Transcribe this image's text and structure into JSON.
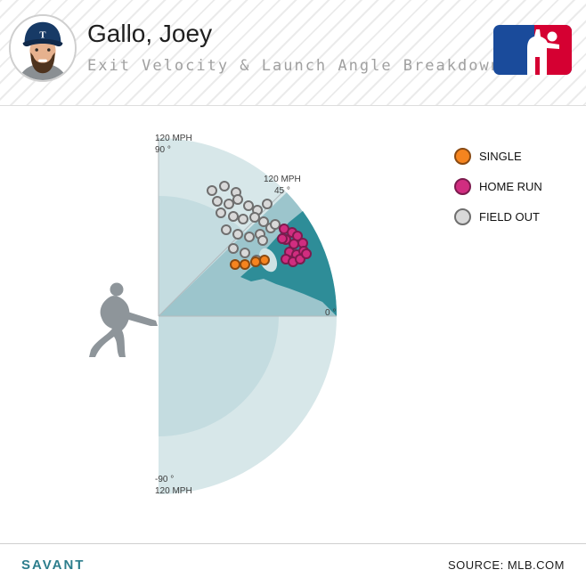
{
  "header": {
    "title": "Gallo, Joey",
    "subtitle": "Exit Velocity & Launch Angle Breakdown"
  },
  "legend": [
    {
      "label": "SINGLE",
      "color": "#f5841f",
      "stroke": "#8a4a12"
    },
    {
      "label": "HOME RUN",
      "color": "#d12d80",
      "stroke": "#7c1b4e"
    },
    {
      "label": "FIELD OUT",
      "color": "#d9d9d9",
      "stroke": "#6f6f6f"
    }
  ],
  "axis_labels": {
    "top": [
      "120 MPH",
      "90 °"
    ],
    "diag": [
      "120 MPH",
      "45 °"
    ],
    "right": "0 °",
    "bottom": [
      "-90 °",
      "120 MPH"
    ]
  },
  "footer": {
    "brand": "SAVANT",
    "source": "SOURCE: MLB.COM"
  },
  "colors": {
    "zone_outer": "#d7e7e9",
    "zone_inner": "#c4dce0",
    "zone_medium": "#9cc5cc",
    "zone_dark": "#2e8d98",
    "notch": "#cfe2e4",
    "axis_line": "#b3babd",
    "batter": "#8e959a",
    "mlb_blue": "#1a4b9b",
    "mlb_red": "#d50032"
  },
  "chart_data": {
    "type": "scatter",
    "coordinates": "polar",
    "title": "Exit Velocity & Launch Angle Breakdown",
    "angle_label": "launch angle (degrees)",
    "radius_label": "exit velocity (mph)",
    "angle_range": [
      -90,
      90
    ],
    "r_max": 120,
    "point_format": [
      "launch_angle_deg",
      "exit_velocity_mph"
    ],
    "series": [
      {
        "name": "SINGLE",
        "color": "#f5841f",
        "stroke": "#8a4a12",
        "points": [
          [
            34,
            62
          ],
          [
            31,
            68
          ],
          [
            29,
            75
          ],
          [
            28,
            81
          ]
        ]
      },
      {
        "name": "HOME RUN",
        "color": "#d12d80",
        "stroke": "#7c1b4e",
        "points": [
          [
            35,
            103
          ],
          [
            32,
            106
          ],
          [
            30,
            108
          ],
          [
            31,
            100
          ],
          [
            28,
            103
          ],
          [
            27,
            109
          ],
          [
            26,
            98
          ],
          [
            24,
            102
          ],
          [
            24,
            107
          ],
          [
            24,
            94
          ],
          [
            22,
            98
          ],
          [
            22,
            103
          ],
          [
            23,
            108
          ],
          [
            32,
            98
          ]
        ]
      },
      {
        "name": "FIELD OUT",
        "color": "#d9d9d9",
        "stroke": "#6f6f6f",
        "points": [
          [
            67,
            92
          ],
          [
            63,
            98
          ],
          [
            58,
            98
          ],
          [
            63,
            87
          ],
          [
            58,
            89
          ],
          [
            56,
            95
          ],
          [
            51,
            96
          ],
          [
            47,
            98
          ],
          [
            46,
            105
          ],
          [
            59,
            81
          ],
          [
            53,
            84
          ],
          [
            49,
            87
          ],
          [
            46,
            93
          ],
          [
            42,
            95
          ],
          [
            52,
            74
          ],
          [
            46,
            77
          ],
          [
            41,
            81
          ],
          [
            39,
            88
          ],
          [
            38,
            96
          ],
          [
            42,
            68
          ],
          [
            36,
            72
          ],
          [
            30,
            76
          ],
          [
            38,
            100
          ],
          [
            36,
            87
          ]
        ]
      }
    ]
  }
}
